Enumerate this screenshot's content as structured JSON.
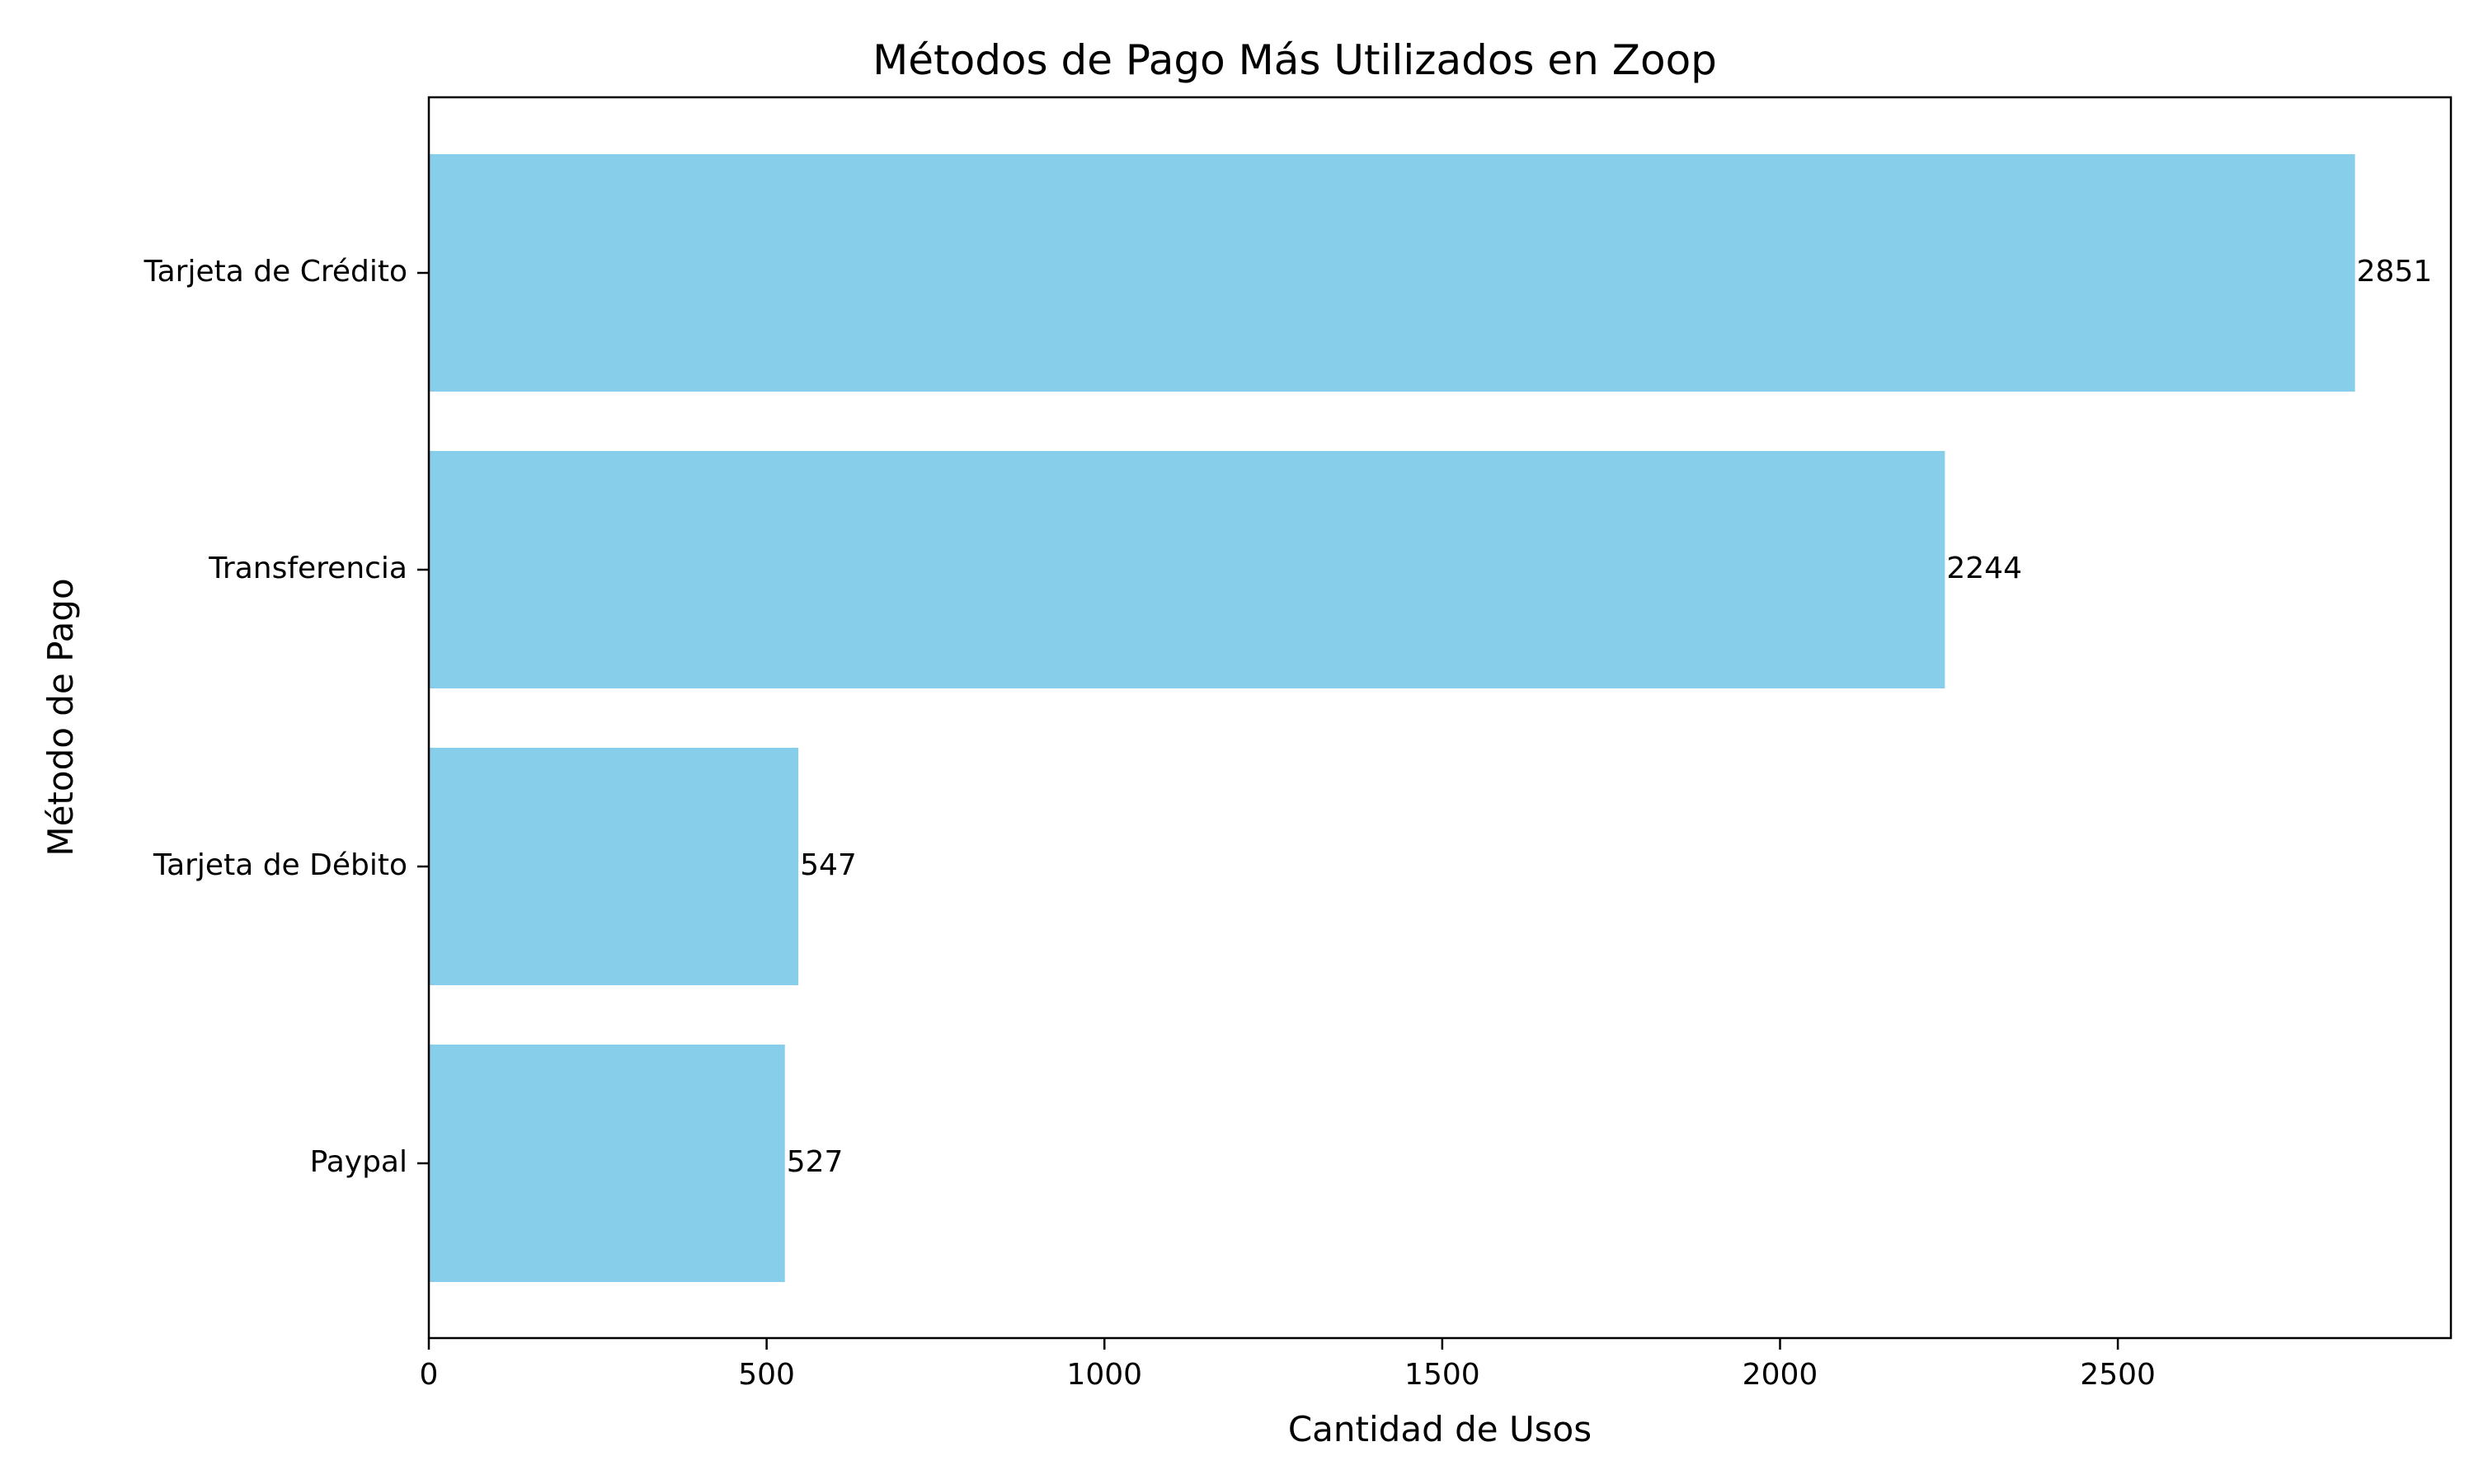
{
  "chart_data": {
    "type": "bar",
    "orientation": "horizontal",
    "title": "Métodos de Pago Más Utilizados en Zoop",
    "xlabel": "Cantidad de Usos",
    "ylabel": "Método de Pago",
    "categories": [
      "Tarjeta de Crédito",
      "Transferencia",
      "Tarjeta de Débito",
      "Paypal"
    ],
    "values": [
      2851,
      2244,
      547,
      527
    ],
    "xlim": [
      0,
      2993
    ],
    "xticks": [
      0,
      500,
      1000,
      1500,
      2000,
      2500
    ],
    "grid": false,
    "legend": "none",
    "bar_color": "#87CEEB"
  }
}
